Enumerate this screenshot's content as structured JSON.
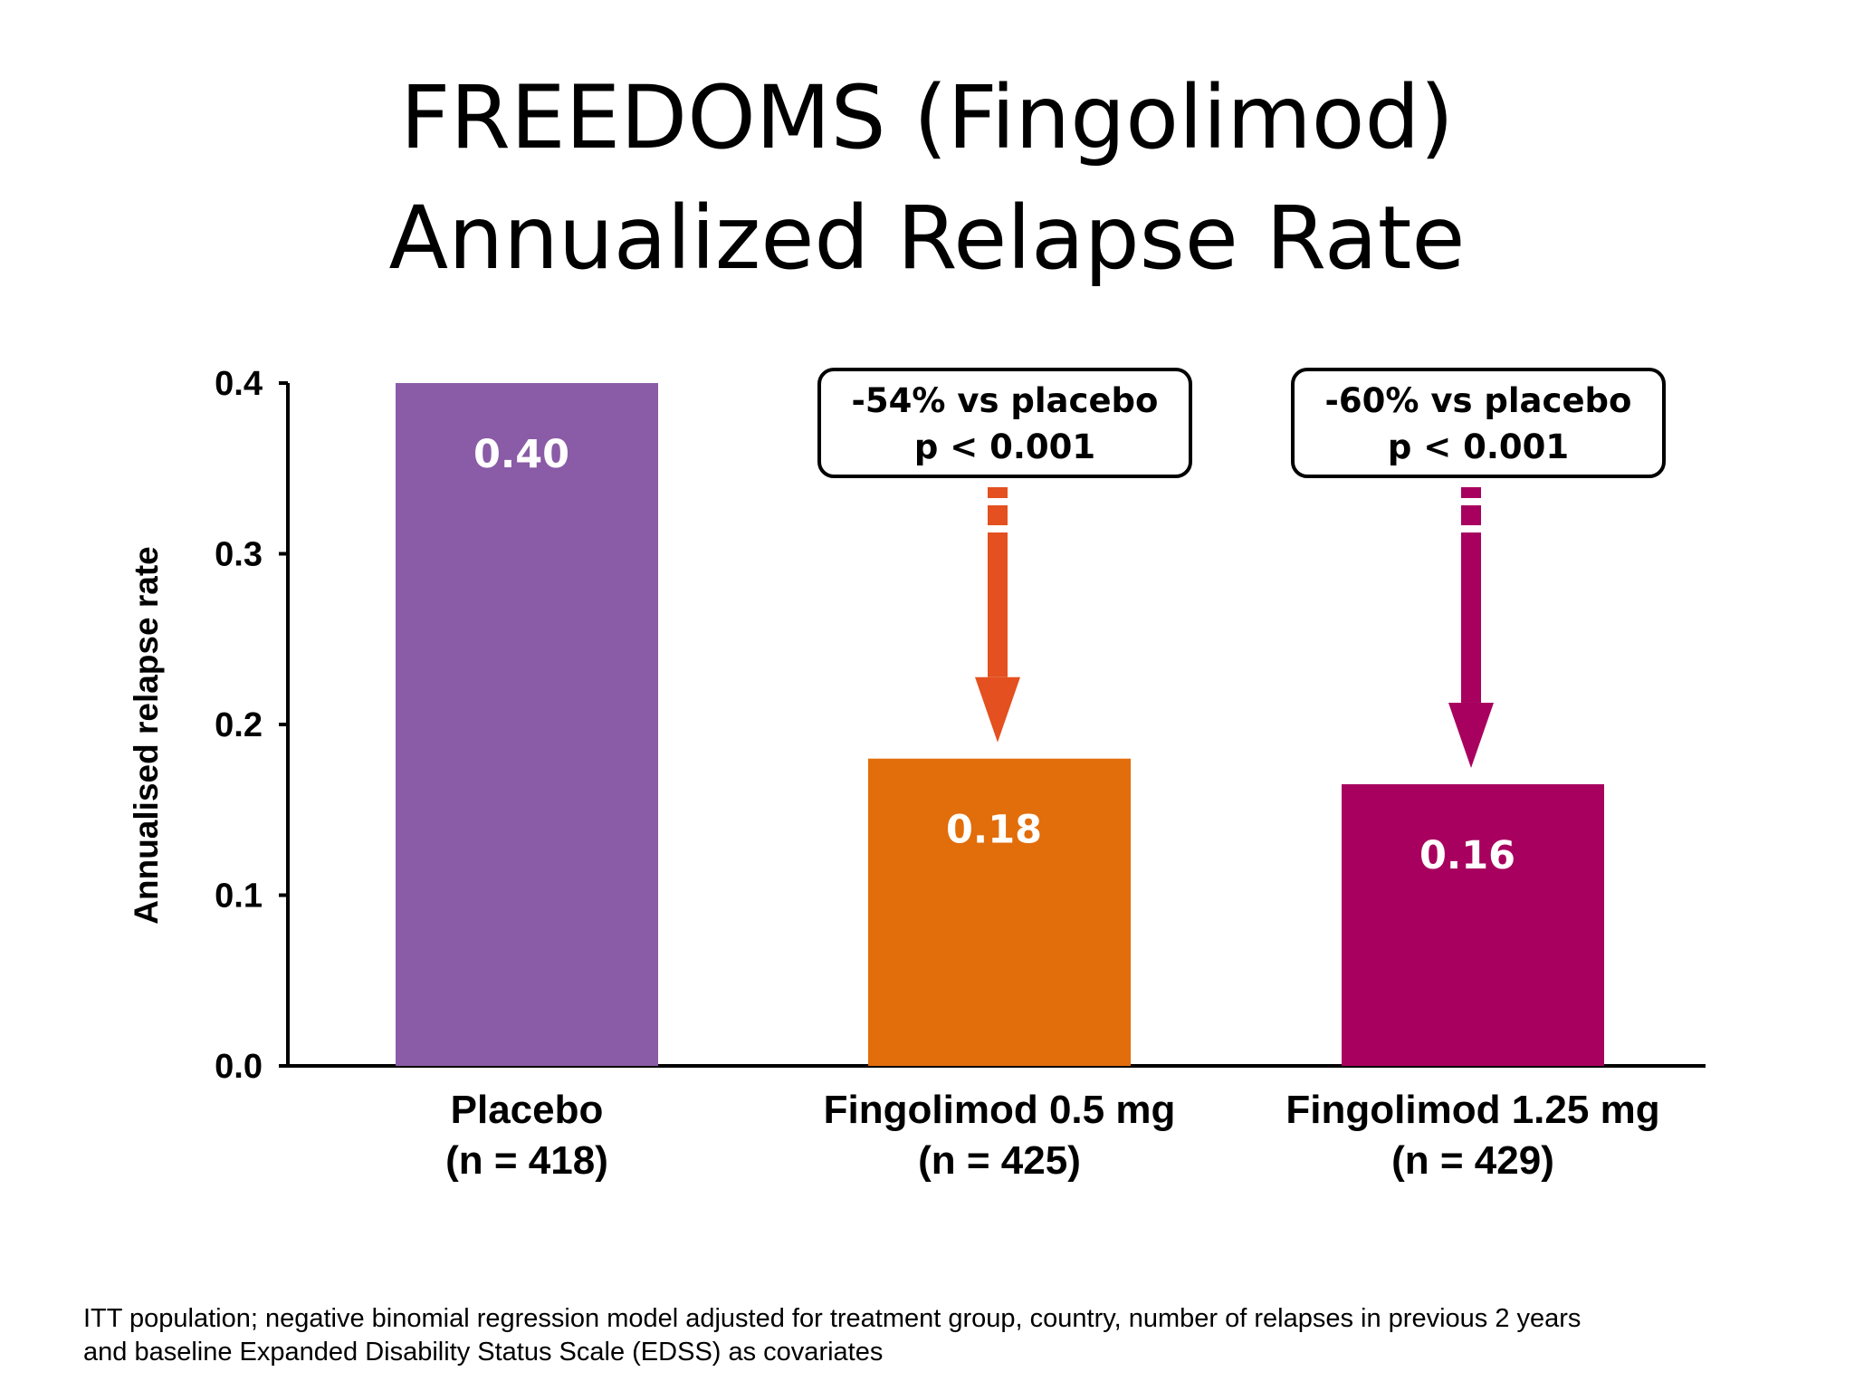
{
  "slide": {
    "title_line1": "FREEDOMS (Fingolimod)",
    "title_line2": "Annualized Relapse Rate",
    "footnote_line1": "ITT population; negative binomial regression model adjusted for treatment group, country, number of relapses in previous 2 years",
    "footnote_line2": "and baseline Expanded Disability Status Scale (EDSS) as covariates"
  },
  "chart_data": {
    "type": "bar",
    "title": "FREEDOMS (Fingolimod) Annualized Relapse Rate",
    "ylabel": "Annualised relapse rate",
    "xlabel": "",
    "ylim": [
      0,
      0.4
    ],
    "yticks": [
      "0.0",
      "0.1",
      "0.2",
      "0.3",
      "0.4"
    ],
    "grid": false,
    "categories": [
      "Placebo",
      "Fingolimod 0.5 mg",
      "Fingolimod 1.25 mg"
    ],
    "category_sublabels": [
      "(n = 418)",
      "(n = 425)",
      "(n = 429)"
    ],
    "values": [
      0.4,
      0.18,
      0.165
    ],
    "value_labels": [
      "0.40",
      "0.18",
      "0.16"
    ],
    "colors": [
      "#8a5ba6",
      "#e26d0b",
      "#a8005f"
    ],
    "annotations": [
      {
        "category": "Fingolimod 0.5 mg",
        "line1": "-54% vs placebo",
        "line2": "p < 0.001",
        "arrow_color": "#e4501f"
      },
      {
        "category": "Fingolimod 1.25 mg",
        "line1": "-60% vs placebo",
        "line2": "p < 0.001",
        "arrow_color": "#a8005f"
      }
    ]
  }
}
